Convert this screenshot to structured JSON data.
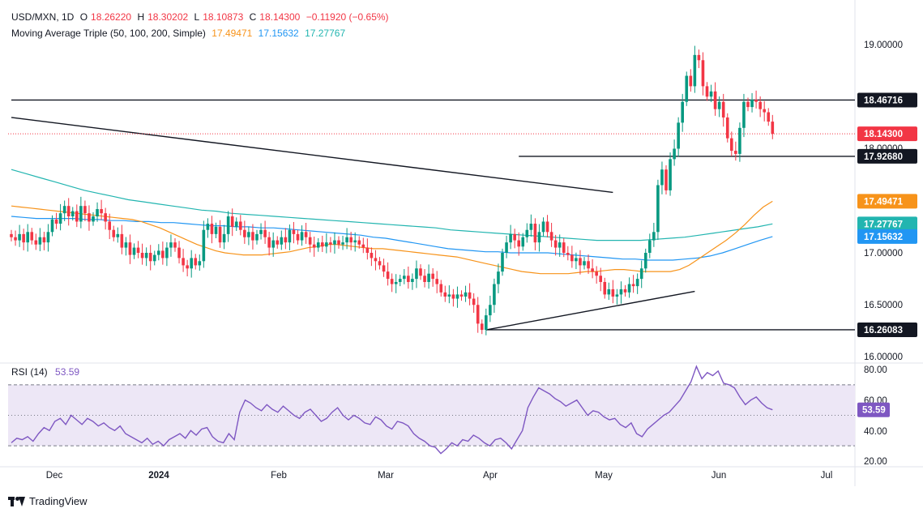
{
  "header": {
    "symbol": "USD/MXN, 1D",
    "open_label": "O",
    "open": "18.26220",
    "high_label": "H",
    "high": "18.30202",
    "low_label": "L",
    "low": "18.10873",
    "close_label": "C",
    "close": "18.14300",
    "change": "−0.11920 (−0.65%)",
    "ma_title": "Moving Average Triple (50, 100, 200, Simple)",
    "ma50": "17.49471",
    "ma100": "17.15632",
    "ma200": "17.27767",
    "rsi_title": "RSI (14)",
    "rsi_value": "53.59",
    "footer_brand": "TradingView"
  },
  "colors": {
    "up": "#089981",
    "down": "#f23645",
    "ma50": "#f7931a",
    "ma100": "#2196f3",
    "ma200": "#22b5b0",
    "rsi": "#7e57c2",
    "rsi_band": "#ede7f6"
  },
  "chart_data": [
    {
      "type": "candlestick",
      "title": "USD/MXN, 1D",
      "x_tick_labels": [
        "Dec",
        "2024",
        "Feb",
        "Mar",
        "Apr",
        "May",
        "Jun",
        "Jul"
      ],
      "y_tick_labels": [
        "19.00000",
        "18.00000",
        "17.00000",
        "16.50000",
        "16.00000"
      ],
      "ylim": [
        15.95,
        19.3
      ],
      "price_labels": [
        {
          "value": 18.46716,
          "text": "18.46716",
          "style": "line"
        },
        {
          "value": 18.143,
          "text": "18.14300",
          "style": "last"
        },
        {
          "value": 17.9268,
          "text": "17.92680",
          "style": "line"
        },
        {
          "value": 17.49471,
          "text": "17.49471",
          "style": "ma50"
        },
        {
          "value": 17.27767,
          "text": "17.27767",
          "style": "ma200"
        },
        {
          "value": 17.15632,
          "text": "17.15632",
          "style": "ma100"
        },
        {
          "value": 16.26083,
          "text": "16.26083",
          "style": "line"
        }
      ],
      "closes": [
        17.15,
        17.12,
        17.18,
        17.1,
        17.2,
        17.12,
        17.08,
        17.15,
        17.1,
        17.2,
        17.32,
        17.28,
        17.38,
        17.45,
        17.35,
        17.4,
        17.3,
        17.45,
        17.38,
        17.3,
        17.35,
        17.42,
        17.38,
        17.3,
        17.22,
        17.15,
        17.18,
        17.05,
        17.1,
        16.98,
        17.05,
        17.0,
        16.95,
        17.0,
        16.92,
        16.98,
        17.02,
        16.95,
        17.05,
        17.1,
        17.05,
        16.95,
        16.88,
        16.85,
        16.95,
        16.88,
        16.92,
        17.22,
        17.28,
        17.18,
        17.25,
        17.1,
        17.18,
        17.35,
        17.25,
        17.3,
        17.22,
        17.15,
        17.2,
        17.12,
        17.18,
        17.22,
        17.15,
        17.05,
        17.12,
        17.08,
        17.15,
        17.1,
        17.22,
        17.18,
        17.12,
        17.2,
        17.15,
        17.08,
        17.05,
        17.1,
        17.06,
        17.1,
        17.08,
        17.12,
        17.08,
        17.1,
        17.15,
        17.1,
        17.12,
        17.08,
        17.05,
        17.0,
        16.95,
        16.92,
        16.88,
        16.82,
        16.75,
        16.7,
        16.72,
        16.75,
        16.78,
        16.72,
        16.75,
        16.85,
        16.78,
        16.72,
        16.8,
        16.75,
        16.7,
        16.62,
        16.58,
        16.6,
        16.56,
        16.6,
        16.58,
        16.62,
        16.56,
        16.5,
        16.32,
        16.26,
        16.4,
        16.5,
        16.7,
        16.82,
        17.0,
        17.1,
        17.18,
        17.12,
        17.06,
        17.15,
        17.22,
        17.28,
        17.1,
        17.2,
        17.3,
        17.2,
        17.12,
        17.05,
        17.1,
        17.0,
        16.98,
        16.92,
        16.95,
        16.88,
        16.92,
        16.85,
        16.82,
        16.78,
        16.72,
        16.6,
        16.65,
        16.58,
        16.6,
        16.65,
        16.62,
        16.7,
        16.68,
        16.75,
        16.85,
        17.0,
        17.12,
        17.2,
        17.65,
        17.8,
        17.6,
        17.9,
        18.0,
        18.25,
        18.45,
        18.7,
        18.6,
        18.9,
        18.85,
        18.6,
        18.5,
        18.55,
        18.38,
        18.45,
        18.3,
        18.1,
        17.98,
        17.95,
        18.2,
        18.45,
        18.4,
        18.47,
        18.45,
        18.38,
        18.35,
        18.26,
        18.143
      ],
      "ma50": [
        17.45,
        17.44,
        17.43,
        17.42,
        17.41,
        17.4,
        17.39,
        17.38,
        17.37,
        17.36,
        17.35,
        17.34,
        17.33,
        17.32,
        17.3,
        17.27,
        17.24,
        17.2,
        17.16,
        17.12,
        17.08,
        17.05,
        17.02,
        17.0,
        16.99,
        16.98,
        16.98,
        16.98,
        16.99,
        17.0,
        17.01,
        17.03,
        17.05,
        17.06,
        17.08,
        17.08,
        17.07,
        17.06,
        17.05,
        17.04,
        17.04,
        17.03,
        17.02,
        17.01,
        17.0,
        16.99,
        16.98,
        16.97,
        16.96,
        16.94,
        16.92,
        16.9,
        16.88,
        16.86,
        16.84,
        16.82,
        16.81,
        16.8,
        16.8,
        16.8,
        16.8,
        16.81,
        16.82,
        16.82,
        16.83,
        16.84,
        16.84,
        16.83,
        16.82,
        16.82,
        16.82,
        16.82,
        16.84,
        16.88,
        16.94,
        17.0,
        17.06,
        17.12,
        17.19,
        17.27,
        17.36,
        17.44,
        17.49471
      ],
      "ma100": [
        17.35,
        17.34,
        17.33,
        17.33,
        17.33,
        17.33,
        17.32,
        17.32,
        17.31,
        17.31,
        17.3,
        17.3,
        17.29,
        17.29,
        17.28,
        17.27,
        17.26,
        17.26,
        17.25,
        17.25,
        17.24,
        17.24,
        17.23,
        17.22,
        17.21,
        17.2,
        17.19,
        17.18,
        17.17,
        17.15,
        17.14,
        17.12,
        17.1,
        17.08,
        17.06,
        17.04,
        17.03,
        17.02,
        17.01,
        17.01,
        17.0,
        17.0,
        17.0,
        17.0,
        16.99,
        16.98,
        16.97,
        16.96,
        16.95,
        16.94,
        16.94,
        16.93,
        16.93,
        16.93,
        16.94,
        16.95,
        16.97,
        17.0,
        17.04,
        17.08,
        17.12,
        17.15632
      ],
      "ma200": [
        17.8,
        17.76,
        17.72,
        17.68,
        17.64,
        17.6,
        17.57,
        17.54,
        17.51,
        17.49,
        17.47,
        17.45,
        17.43,
        17.41,
        17.4,
        17.38,
        17.37,
        17.36,
        17.35,
        17.34,
        17.33,
        17.32,
        17.31,
        17.3,
        17.29,
        17.28,
        17.27,
        17.26,
        17.25,
        17.24,
        17.22,
        17.21,
        17.2,
        17.19,
        17.18,
        17.17,
        17.16,
        17.15,
        17.14,
        17.13,
        17.12,
        17.12,
        17.12,
        17.12,
        17.13,
        17.14,
        17.15,
        17.17,
        17.19,
        17.21,
        17.23,
        17.25,
        17.27767
      ],
      "trendlines": [
        {
          "from": [
            0,
            18.3
          ],
          "to": [
            147,
            17.58
          ]
        },
        {
          "from": [
            116,
            16.26
          ],
          "to": [
            167,
            16.63
          ]
        },
        {
          "from": [
            116,
            16.26083
          ],
          "to": [
            1000000000.0,
            16.26083
          ]
        },
        {
          "from": [
            124,
            17.9268
          ],
          "to": [
            1000000000.0,
            17.9268
          ]
        },
        {
          "from": [
            0,
            18.46716
          ],
          "to": [
            1000000000.0,
            18.46716
          ]
        }
      ]
    },
    {
      "type": "line",
      "title": "RSI (14)",
      "y_tick_labels": [
        "80.00",
        "60.00",
        "40.00",
        "20.00"
      ],
      "ylim": [
        18,
        85
      ],
      "bands": [
        70,
        30
      ],
      "midline": 50,
      "values": [
        32,
        35,
        34,
        36,
        33,
        38,
        42,
        40,
        46,
        48,
        44,
        50,
        47,
        44,
        48,
        46,
        43,
        45,
        42,
        40,
        43,
        38,
        36,
        34,
        32,
        35,
        31,
        33,
        30,
        34,
        36,
        38,
        35,
        40,
        37,
        41,
        42,
        36,
        33,
        32,
        38,
        34,
        52,
        60,
        58,
        55,
        53,
        57,
        54,
        52,
        56,
        53,
        50,
        48,
        52,
        54,
        50,
        46,
        48,
        52,
        55,
        50,
        47,
        50,
        48,
        45,
        44,
        49,
        47,
        43,
        41,
        46,
        45,
        43,
        38,
        35,
        33,
        30,
        29,
        25,
        28,
        32,
        30,
        34,
        33,
        37,
        35,
        32,
        30,
        34,
        35,
        32,
        28,
        34,
        40,
        55,
        62,
        68,
        66,
        64,
        61,
        59,
        56,
        58,
        60,
        55,
        50,
        53,
        52,
        49,
        47,
        48,
        44,
        42,
        45,
        38,
        36,
        41,
        44,
        47,
        50,
        52,
        56,
        60,
        66,
        72,
        82,
        74,
        78,
        76,
        79,
        71,
        70,
        68,
        62,
        57,
        60,
        62,
        58,
        55,
        53.59
      ]
    }
  ]
}
